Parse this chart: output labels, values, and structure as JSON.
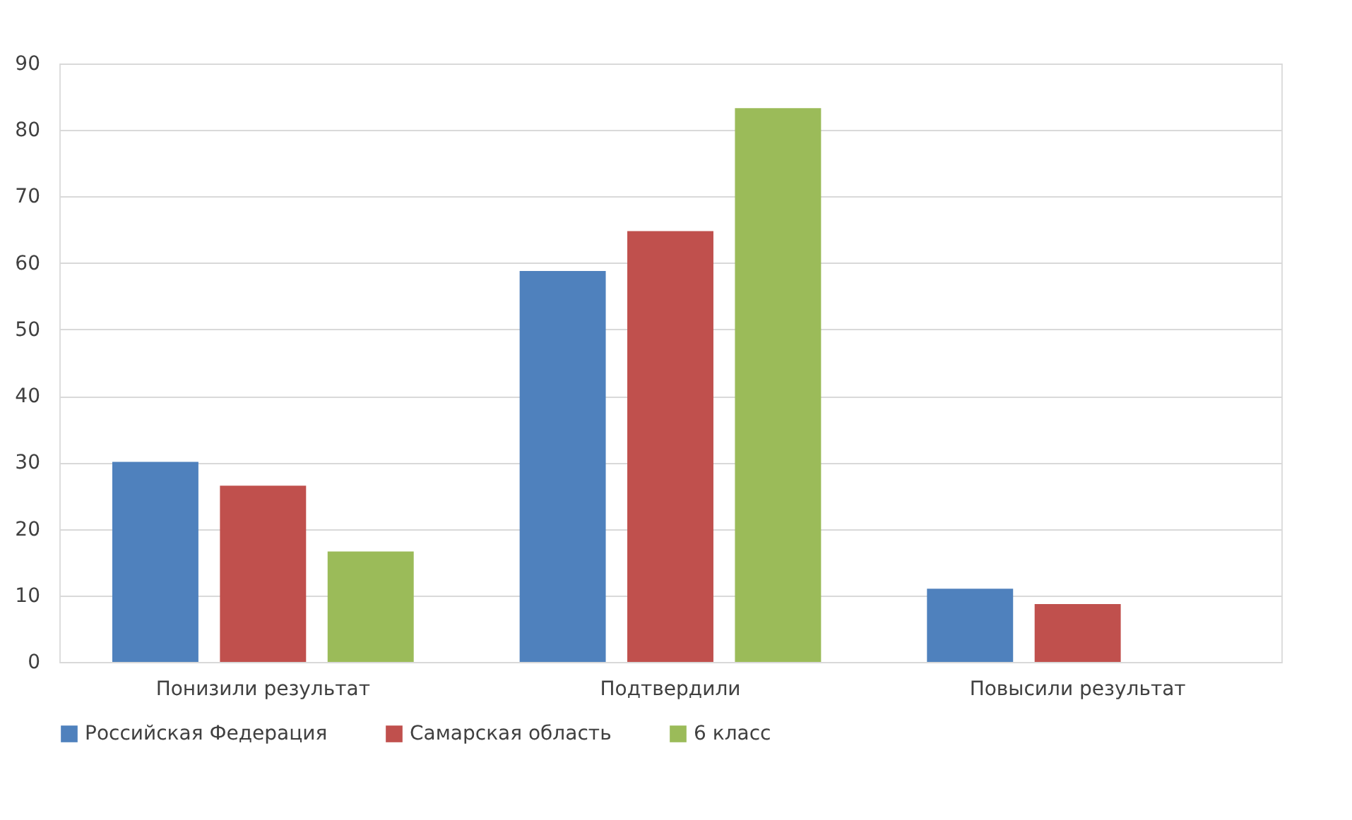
{
  "chart_data": {
    "type": "bar",
    "categories": [
      "Понизили результат",
      "Подтвердили",
      "Повысили результат"
    ],
    "series": [
      {
        "name": "Российская Федерация",
        "color": "#4f81bd",
        "values": [
          30.1,
          58.8,
          11.0
        ]
      },
      {
        "name": "Самарская область",
        "color": "#c0504d",
        "values": [
          26.5,
          64.8,
          8.7
        ]
      },
      {
        "name": "6 класс",
        "color": "#9bbb59",
        "values": [
          16.6,
          83.3,
          null
        ]
      }
    ],
    "ylim": [
      0,
      90
    ],
    "yticks": [
      0,
      10,
      20,
      30,
      40,
      50,
      60,
      70,
      80,
      90
    ],
    "grid": "y",
    "legend": "bottom"
  }
}
